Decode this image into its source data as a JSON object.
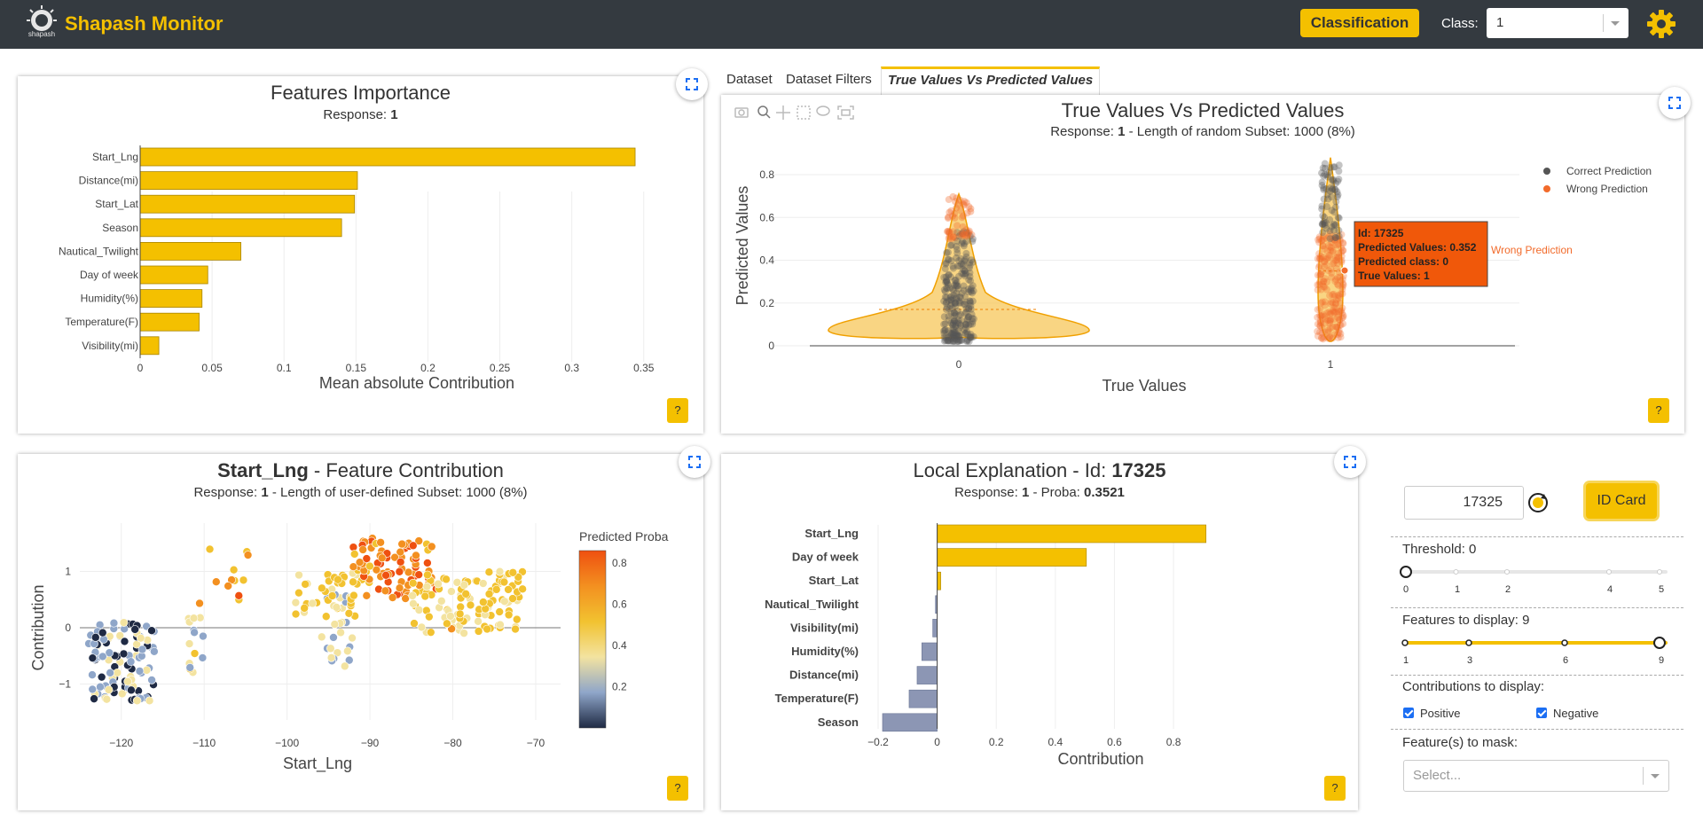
{
  "navbar": {
    "brand": "Shapash Monitor",
    "logo_text": "shapash",
    "model_type_badge": "Classification",
    "class_label": "Class:",
    "class_value": "1"
  },
  "tabs": [
    {
      "label": "Dataset"
    },
    {
      "label": "Dataset Filters"
    },
    {
      "label": "True Values Vs Predicted Values"
    }
  ],
  "help_label": "?",
  "features_importance": {
    "title": "Features Importance",
    "subtitle_prefix": "Response: ",
    "subtitle_value": "1",
    "chart_data": {
      "type": "bar",
      "orientation": "horizontal",
      "categories": [
        "Start_Lng",
        "Distance(mi)",
        "Start_Lat",
        "Season",
        "Nautical_Twilight",
        "Day of week",
        "Humidity(%)",
        "Temperature(F)",
        "Visibility(mi)"
      ],
      "values": [
        0.344,
        0.151,
        0.149,
        0.14,
        0.07,
        0.047,
        0.043,
        0.041,
        0.013
      ],
      "xlabel": "Mean absolute Contribution",
      "xticks": [
        "0",
        "0.05",
        "0.1",
        "0.15",
        "0.2",
        "0.25",
        "0.3",
        "0.35"
      ],
      "xlim": [
        0,
        0.36
      ],
      "bar_color": "#f4c000"
    }
  },
  "true_vs_pred": {
    "title": "True Values Vs Predicted Values",
    "subtitle": "Response: 1 - Length of random Subset: 1000 (8%)",
    "subtitle_prefix": "Response: ",
    "subtitle_bold": "1",
    "subtitle_suffix": " - Length of random Subset: 1000 (8%)",
    "chart_data": {
      "type": "violin",
      "xlabel": "True Values",
      "ylabel": "Predicted Values",
      "categories": [
        "0",
        "1"
      ],
      "yticks": [
        "0",
        "0.2",
        "0.4",
        "0.6",
        "0.8"
      ],
      "ylim": [
        0,
        0.88
      ],
      "legend": [
        {
          "name": "Correct Prediction",
          "color": "#555555"
        },
        {
          "name": "Wrong Prediction",
          "color": "#f26b2b"
        }
      ],
      "legend_position": "top-right",
      "tooltip": {
        "lines": [
          "Id: 17325",
          "Predicted Values: 0.352",
          "Predicted class: 0",
          "True Values: 1"
        ],
        "trace": "Wrong Prediction",
        "point": {
          "x": "1",
          "y": 0.352
        }
      }
    }
  },
  "feature_contribution": {
    "title_bold": "Start_Lng",
    "title_rest": " - Feature Contribution",
    "subtitle_prefix": "Response: ",
    "subtitle_bold": "1",
    "subtitle_suffix": " - Length of user-defined Subset: 1000 (8%)",
    "chart_data": {
      "type": "scatter",
      "xlabel": "Start_Lng",
      "ylabel": "Contribution",
      "xticks": [
        "−120",
        "−110",
        "−100",
        "−90",
        "−80",
        "−70"
      ],
      "yticks": [
        "1",
        "0",
        "−1"
      ],
      "xlim": [
        -125,
        -67
      ],
      "ylim": [
        -1.7,
        1.9
      ],
      "colorbar_title": "Predicted Proba",
      "colorbar_ticks": [
        "0.8",
        "0.6",
        "0.4",
        "0.2"
      ]
    }
  },
  "local_explanation": {
    "title_prefix": "Local Explanation - Id: ",
    "title_bold": "17325",
    "subtitle_prefix": "Response: ",
    "subtitle_bold": "1",
    "subtitle_mid": " - Proba: ",
    "subtitle_proba": "0.3521",
    "chart_data": {
      "type": "bar",
      "orientation": "horizontal",
      "categories": [
        "Start_Lng",
        "Day of week",
        "Start_Lat",
        "Nautical_Twilight",
        "Visibility(mi)",
        "Humidity(%)",
        "Distance(mi)",
        "Temperature(F)",
        "Season"
      ],
      "values": [
        0.91,
        0.505,
        0.012,
        -0.006,
        -0.015,
        -0.052,
        -0.068,
        -0.095,
        -0.185
      ],
      "xlabel": "Contribution",
      "xticks": [
        "−0.2",
        "0",
        "0.2",
        "0.4",
        "0.6",
        "0.8"
      ],
      "xlim": [
        -0.2,
        0.95
      ],
      "positive_color": "#f4c000",
      "negative_color": "#8c96b4"
    }
  },
  "controls": {
    "id_value": "17325",
    "id_card_label": "ID Card",
    "threshold_label": "Threshold: 0",
    "threshold_value": 0,
    "threshold_ticks": [
      "0",
      "1",
      "2",
      "4",
      "5"
    ],
    "features_label": "Features to display: 9",
    "features_value": 9,
    "features_ticks": [
      "1",
      "3",
      "6",
      "9"
    ],
    "contrib_label": "Contributions to display:",
    "positive_label": "Positive",
    "negative_label": "Negative",
    "mask_label": "Feature(s) to mask:",
    "mask_placeholder": "Select..."
  }
}
